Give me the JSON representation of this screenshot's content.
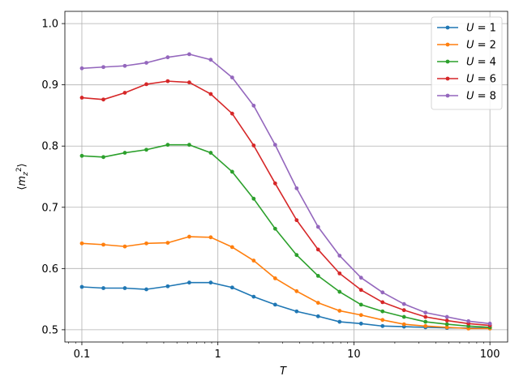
{
  "chart_data": {
    "type": "line",
    "xlabel": "T",
    "ylabel": "⟨m_z²⟩",
    "xscale": "log",
    "xlim": [
      0.075,
      135
    ],
    "ylim": [
      0.48,
      1.02
    ],
    "xticks": [
      {
        "value": 0.1,
        "label": "0.1"
      },
      {
        "value": 1,
        "label": "1"
      },
      {
        "value": 10,
        "label": "10"
      },
      {
        "value": 100,
        "label": "100"
      }
    ],
    "yticks": [
      {
        "value": 0.5,
        "label": "0.5"
      },
      {
        "value": 0.6,
        "label": "0.6"
      },
      {
        "value": 0.7,
        "label": "0.7"
      },
      {
        "value": 0.8,
        "label": "0.8"
      },
      {
        "value": 0.9,
        "label": "0.9"
      },
      {
        "value": 1.0,
        "label": "1.0"
      }
    ],
    "grid": true,
    "legend_position": "top-right",
    "x": [
      0.1,
      0.144,
      0.207,
      0.298,
      0.428,
      0.616,
      0.886,
      1.274,
      1.833,
      2.637,
      3.793,
      5.456,
      7.848,
      11.29,
      16.24,
      23.36,
      33.6,
      48.33,
      69.52,
      100
    ],
    "series": [
      {
        "name": "U = 1",
        "name_parts": {
          "var": "U",
          "op": " = ",
          "val": "1"
        },
        "color": "#1f77b4",
        "values": [
          0.57,
          0.568,
          0.568,
          0.566,
          0.571,
          0.577,
          0.577,
          0.569,
          0.554,
          0.541,
          0.53,
          0.522,
          0.513,
          0.51,
          0.506,
          0.505,
          0.504,
          0.503,
          0.503,
          0.503
        ]
      },
      {
        "name": "U = 2",
        "name_parts": {
          "var": "U",
          "op": " = ",
          "val": "2"
        },
        "color": "#ff7f0e",
        "values": [
          0.641,
          0.639,
          0.636,
          0.641,
          0.642,
          0.652,
          0.651,
          0.635,
          0.613,
          0.584,
          0.563,
          0.544,
          0.531,
          0.524,
          0.516,
          0.509,
          0.506,
          0.504,
          0.502,
          0.502
        ]
      },
      {
        "name": "U = 4",
        "name_parts": {
          "var": "U",
          "op": " = ",
          "val": "4"
        },
        "color": "#2ca02c",
        "values": [
          0.784,
          0.782,
          0.789,
          0.794,
          0.802,
          0.802,
          0.789,
          0.758,
          0.714,
          0.665,
          0.622,
          0.588,
          0.562,
          0.541,
          0.53,
          0.521,
          0.513,
          0.509,
          0.506,
          0.504
        ]
      },
      {
        "name": "U = 6",
        "name_parts": {
          "var": "U",
          "op": " = ",
          "val": "6"
        },
        "color": "#d62728",
        "values": [
          0.879,
          0.876,
          0.887,
          0.901,
          0.906,
          0.904,
          0.885,
          0.853,
          0.801,
          0.739,
          0.679,
          0.631,
          0.592,
          0.565,
          0.545,
          0.532,
          0.521,
          0.515,
          0.51,
          0.507
        ]
      },
      {
        "name": "U = 8",
        "name_parts": {
          "var": "U",
          "op": " = ",
          "val": "8"
        },
        "color": "#9467bd",
        "values": [
          0.927,
          0.929,
          0.931,
          0.936,
          0.945,
          0.95,
          0.941,
          0.912,
          0.866,
          0.802,
          0.731,
          0.668,
          0.621,
          0.585,
          0.561,
          0.542,
          0.528,
          0.521,
          0.514,
          0.51
        ]
      }
    ]
  }
}
